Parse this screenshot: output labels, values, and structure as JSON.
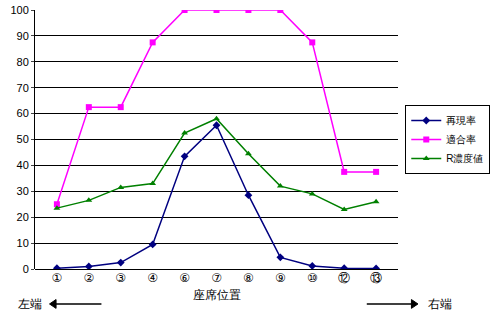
{
  "chart_data": {
    "type": "line",
    "x_label": "座席位置",
    "annotations": [
      "左端",
      "右端"
    ],
    "categories": [
      "①",
      "②",
      "③",
      "④",
      "⑥",
      "⑦",
      "⑧",
      "⑨",
      "⑩",
      "⑫",
      "⑬"
    ],
    "series": [
      {
        "name": "再現率",
        "color": "#000080",
        "marker": "diamond",
        "values": [
          0.3,
          1,
          2.5,
          9.5,
          43.5,
          55.5,
          28.5,
          4.5,
          1.2,
          0.3,
          0.2
        ]
      },
      {
        "name": "適合率",
        "color": "#ff00ff",
        "marker": "square",
        "values": [
          25,
          62.5,
          62.5,
          87.5,
          100,
          100,
          100,
          100,
          87.5,
          37.5,
          37.5
        ]
      },
      {
        "name": "R濃度値",
        "color": "#008000",
        "marker": "triangle",
        "values": [
          23.5,
          26.5,
          31.5,
          33,
          52.5,
          58,
          44.5,
          32,
          29,
          23,
          26
        ]
      }
    ],
    "ylim": [
      0,
      100
    ],
    "yticks": [
      0,
      10,
      20,
      30,
      40,
      50,
      60,
      70,
      80,
      90,
      100
    ],
    "grid": true,
    "legend": "right"
  }
}
